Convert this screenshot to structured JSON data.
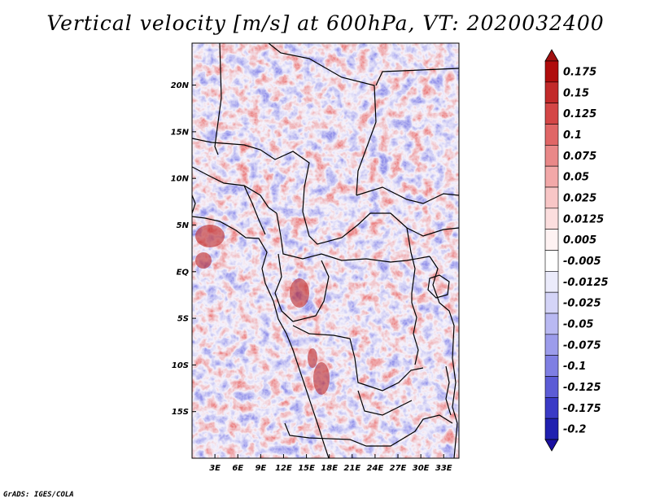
{
  "title": "Vertical velocity [m/s] at 600hPa, VT: 2020032400",
  "credit": "GrADS: IGES/COLA",
  "map": {
    "variable": "Vertical velocity",
    "units": "m/s",
    "level": "600hPa",
    "valid_time": "2020032400",
    "lon_range": [
      0,
      35
    ],
    "lat_range": [
      -20,
      24.5
    ],
    "lat_ticks": [
      {
        "value": 20,
        "label": "20N"
      },
      {
        "value": 15,
        "label": "15N"
      },
      {
        "value": 10,
        "label": "10N"
      },
      {
        "value": 5,
        "label": "5N"
      },
      {
        "value": 0,
        "label": "EQ"
      },
      {
        "value": -5,
        "label": "5S"
      },
      {
        "value": -10,
        "label": "10S"
      },
      {
        "value": -15,
        "label": "15S"
      }
    ],
    "lon_ticks": [
      {
        "value": 3,
        "label": "3E"
      },
      {
        "value": 6,
        "label": "6E"
      },
      {
        "value": 9,
        "label": "9E"
      },
      {
        "value": 12,
        "label": "12E"
      },
      {
        "value": 15,
        "label": "15E"
      },
      {
        "value": 18,
        "label": "18E"
      },
      {
        "value": 21,
        "label": "21E"
      },
      {
        "value": 24,
        "label": "24E"
      },
      {
        "value": 27,
        "label": "27E"
      },
      {
        "value": 30,
        "label": "30E"
      },
      {
        "value": 33,
        "label": "33E"
      }
    ]
  },
  "colorbar": {
    "levels": [
      {
        "label": "0.175",
        "color": "#b00d0d"
      },
      {
        "label": "0.15",
        "color": "#c22a2a"
      },
      {
        "label": "0.125",
        "color": "#d44646"
      },
      {
        "label": "0.1",
        "color": "#e06666"
      },
      {
        "label": "0.075",
        "color": "#e98888"
      },
      {
        "label": "0.05",
        "color": "#f2a8a8"
      },
      {
        "label": "0.025",
        "color": "#f8c6c6"
      },
      {
        "label": "0.0125",
        "color": "#fcdede"
      },
      {
        "label": "0.005",
        "color": "#fef2f2"
      },
      {
        "label": "-0.005",
        "color": "#ffffff"
      },
      {
        "label": "-0.0125",
        "color": "#ebebfb"
      },
      {
        "label": "-0.025",
        "color": "#d4d4f7"
      },
      {
        "label": "-0.05",
        "color": "#b9b9f2"
      },
      {
        "label": "-0.075",
        "color": "#9c9ceb"
      },
      {
        "label": "-0.1",
        "color": "#7f7fe3"
      },
      {
        "label": "-0.125",
        "color": "#5c5cd6"
      },
      {
        "label": "-0.175",
        "color": "#3a3ac6"
      },
      {
        "label": "-0.2",
        "color": "#2020b0"
      }
    ],
    "top_color": "#a01010",
    "bottom_color": "#1a10a0"
  }
}
